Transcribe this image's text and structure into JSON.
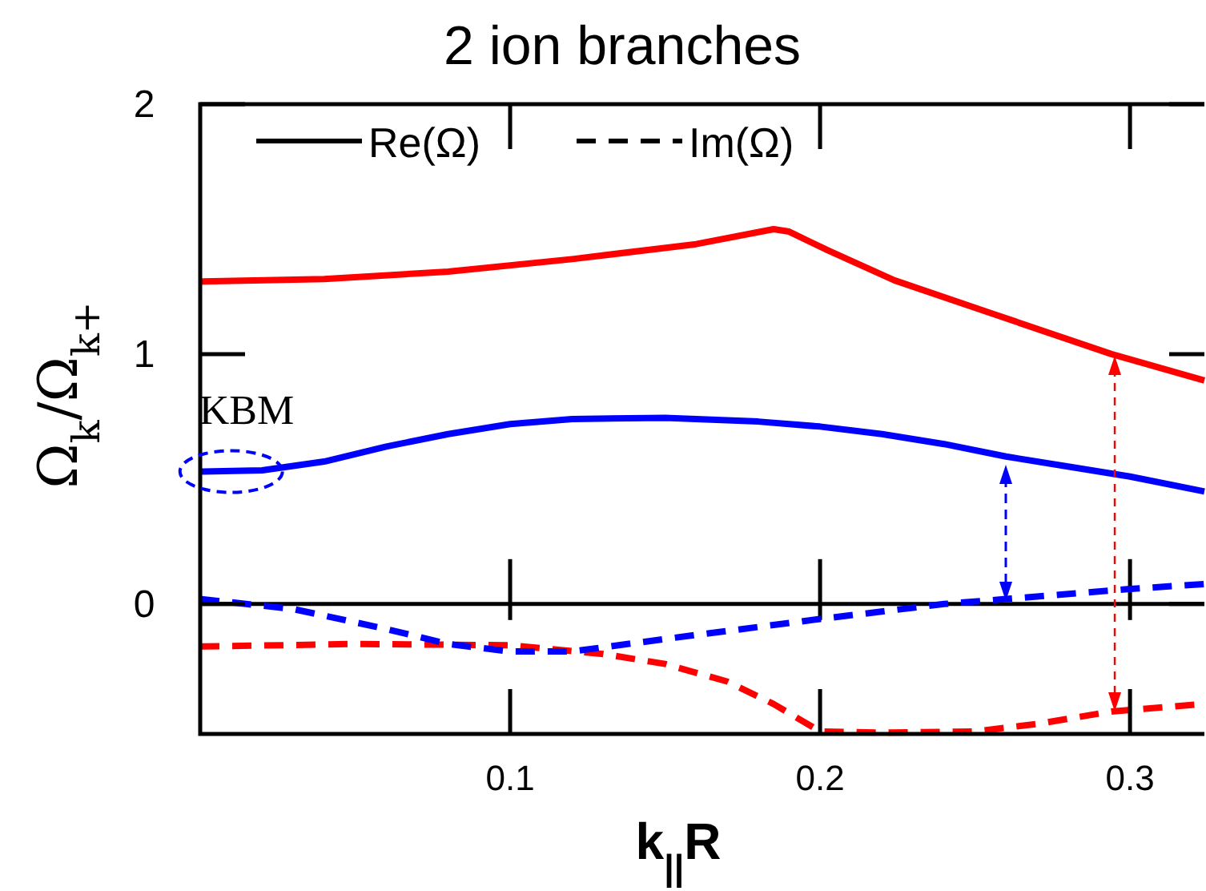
{
  "chart_data": {
    "type": "line",
    "title": "2 ion branches",
    "xlabel": "k$_{||}$R",
    "ylabel": "Ω$_{k}$/Ω$_{k+}$",
    "xlim": [
      0,
      0.324
    ],
    "ylim": [
      -0.52,
      2
    ],
    "xticks": [
      0.1,
      0.2,
      0.3
    ],
    "yticks": [
      0,
      1,
      2
    ],
    "grid": false,
    "marker": "none",
    "ref_lines": [
      {
        "axis": "y",
        "value": 0,
        "color": "#000000",
        "line_style": "solid"
      }
    ],
    "annotations": [
      "Re(Ω)",
      "Im(Ω)",
      {
        "text": "KBM",
        "x": 0.01,
        "y": 0.53
      }
    ],
    "series": [
      {
        "color": "#ff0000",
        "line_style": "solid",
        "x": [
          0,
          0.04,
          0.08,
          0.12,
          0.16,
          0.185,
          0.19,
          0.2025,
          0.224,
          0.256,
          0.294,
          0.324
        ],
        "values": [
          1.29,
          1.3,
          1.33,
          1.38,
          1.44,
          1.5,
          1.49,
          1.415,
          1.295,
          1.16,
          1.0,
          0.894
        ]
      },
      {
        "color": "#ff0000",
        "line_style": "dashed",
        "x": [
          0,
          0.05,
          0.1,
          0.13,
          0.15,
          0.17,
          0.185,
          0.2,
          0.22,
          0.25,
          0.27,
          0.294,
          0.324
        ],
        "values": [
          -0.17,
          -0.16,
          -0.165,
          -0.2,
          -0.24,
          -0.31,
          -0.4,
          -0.51,
          -0.515,
          -0.51,
          -0.48,
          -0.43,
          -0.4
        ]
      },
      {
        "color": "#0000ff",
        "line_style": "solid",
        "x": [
          0,
          0.02,
          0.04,
          0.06,
          0.08,
          0.1,
          0.12,
          0.15,
          0.18,
          0.2,
          0.22,
          0.24,
          0.26,
          0.28,
          0.3,
          0.324
        ],
        "values": [
          0.53,
          0.535,
          0.57,
          0.63,
          0.68,
          0.72,
          0.74,
          0.745,
          0.73,
          0.71,
          0.68,
          0.64,
          0.59,
          0.55,
          0.51,
          0.45
        ]
      },
      {
        "color": "#0000ff",
        "line_style": "dashed",
        "x": [
          0,
          0.03,
          0.06,
          0.08,
          0.1,
          0.12,
          0.15,
          0.2,
          0.24,
          0.26,
          0.3,
          0.324
        ],
        "values": [
          0.02,
          -0.02,
          -0.1,
          -0.16,
          -0.19,
          -0.19,
          -0.14,
          -0.06,
          0.0,
          0.02,
          0.06,
          0.08
        ]
      }
    ]
  }
}
